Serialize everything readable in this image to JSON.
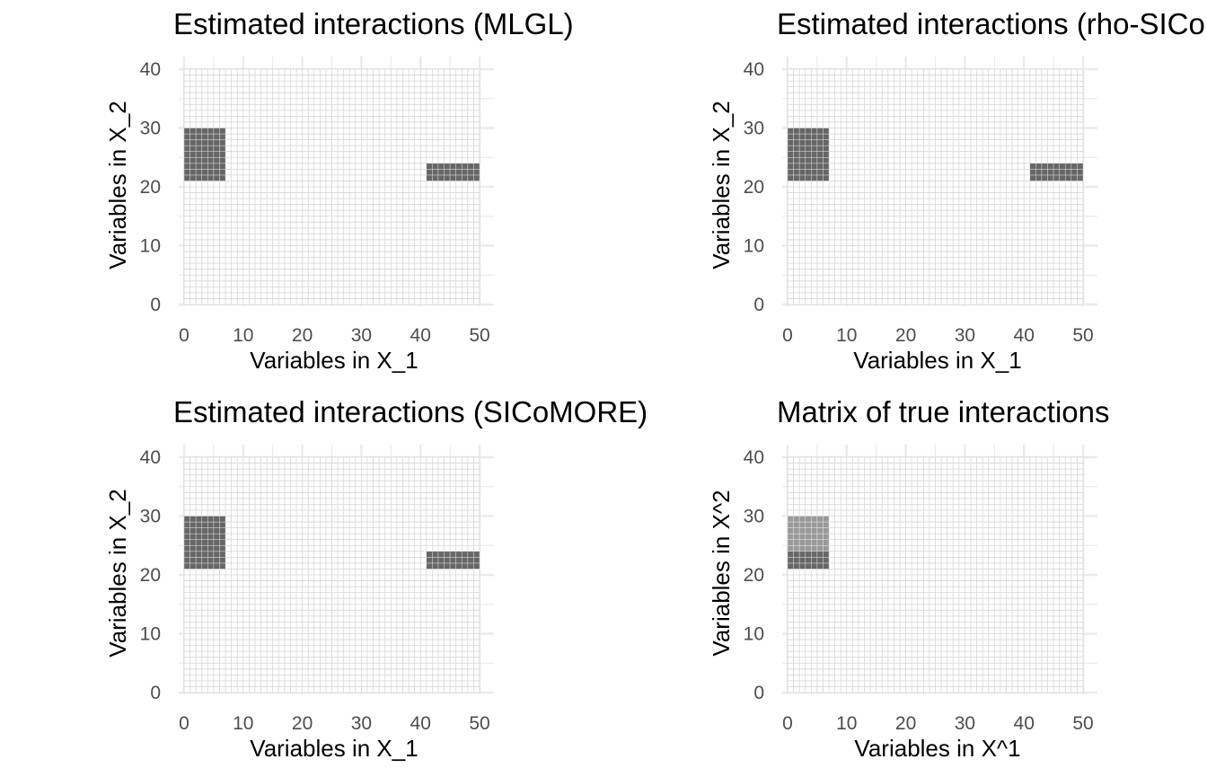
{
  "chart_data": [
    {
      "type": "heatmap",
      "title": "Estimated interactions (MLGL)",
      "xlabel": "Variables in X_1",
      "ylabel": "Variables in X_2",
      "xlim": [
        0,
        50
      ],
      "ylim": [
        0,
        40
      ],
      "x_ticks": [
        0,
        10,
        20,
        30,
        40,
        50
      ],
      "y_ticks": [
        0,
        10,
        20,
        30,
        40
      ],
      "n_cols": 50,
      "n_rows": 40,
      "grid": true,
      "blocks": [
        {
          "x": [
            1,
            7
          ],
          "y": [
            22,
            30
          ],
          "level": "dark"
        },
        {
          "x": [
            42,
            50
          ],
          "y": [
            22,
            24
          ],
          "level": "dark"
        }
      ]
    },
    {
      "type": "heatmap",
      "title": "Estimated interactions (rho-SICoMORE)",
      "xlabel": "Variables in X_1",
      "ylabel": "Variables in X_2",
      "xlim": [
        0,
        50
      ],
      "ylim": [
        0,
        40
      ],
      "x_ticks": [
        0,
        10,
        20,
        30,
        40,
        50
      ],
      "y_ticks": [
        0,
        10,
        20,
        30,
        40
      ],
      "n_cols": 50,
      "n_rows": 40,
      "grid": true,
      "blocks": [
        {
          "x": [
            1,
            7
          ],
          "y": [
            22,
            30
          ],
          "level": "dark"
        },
        {
          "x": [
            42,
            50
          ],
          "y": [
            22,
            24
          ],
          "level": "dark"
        }
      ]
    },
    {
      "type": "heatmap",
      "title": "Estimated interactions (SICoMORE)",
      "xlabel": "Variables in X_1",
      "ylabel": "Variables in X_2",
      "xlim": [
        0,
        50
      ],
      "ylim": [
        0,
        40
      ],
      "x_ticks": [
        0,
        10,
        20,
        30,
        40,
        50
      ],
      "y_ticks": [
        0,
        10,
        20,
        30,
        40
      ],
      "n_cols": 50,
      "n_rows": 40,
      "grid": true,
      "blocks": [
        {
          "x": [
            1,
            7
          ],
          "y": [
            22,
            30
          ],
          "level": "dark"
        },
        {
          "x": [
            42,
            50
          ],
          "y": [
            22,
            24
          ],
          "level": "dark"
        }
      ]
    },
    {
      "type": "heatmap",
      "title": "Matrix of true interactions",
      "xlabel": "Variables in X^1",
      "ylabel": "Variables in X^2",
      "xlim": [
        0,
        50
      ],
      "ylim": [
        0,
        40
      ],
      "x_ticks": [
        0,
        10,
        20,
        30,
        40,
        50
      ],
      "y_ticks": [
        0,
        10,
        20,
        30,
        40
      ],
      "n_cols": 50,
      "n_rows": 40,
      "grid": true,
      "blocks": [
        {
          "x": [
            1,
            7
          ],
          "y": [
            25,
            30
          ],
          "level": "light"
        },
        {
          "x": [
            1,
            7
          ],
          "y": [
            22,
            24
          ],
          "level": "dark"
        }
      ]
    }
  ],
  "colors": {
    "dark": "#666666",
    "light": "#999999",
    "cell_line": "#d6d6d6",
    "major_grid": "#ebebeb",
    "tick_text": "#4d4d4d"
  }
}
